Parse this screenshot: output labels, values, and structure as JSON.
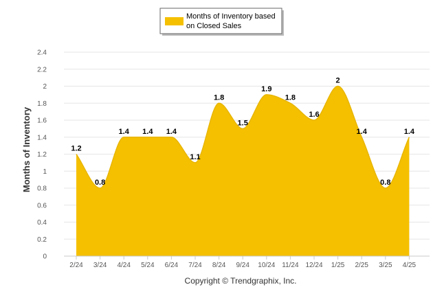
{
  "colors": {
    "area_fill": "#F5C000",
    "area_stroke": "#E8B500",
    "grid": "#E6E6E6",
    "axis": "#C8C8C8",
    "legend_border": "#666666"
  },
  "credit": "Copyright © Trendgraphix, Inc.",
  "chart_data": {
    "type": "area",
    "title": "",
    "xlabel": "",
    "ylabel": "Months of Inventory",
    "ylim": [
      0,
      2.4
    ],
    "yticks": [
      "0",
      "0.2",
      "0.4",
      "0.6",
      "0.8",
      "1",
      "1.2",
      "1.4",
      "1.6",
      "1.8",
      "2",
      "2.2",
      "2.4"
    ],
    "grid": true,
    "legend_position": "top-center",
    "categories": [
      "2/24",
      "3/24",
      "4/24",
      "5/24",
      "6/24",
      "7/24",
      "8/24",
      "9/24",
      "10/24",
      "11/24",
      "12/24",
      "1/25",
      "2/25",
      "3/25",
      "4/25"
    ],
    "series": [
      {
        "name": "Months of Inventory based on Closed Sales",
        "legend_lines": [
          "Months of Inventory based",
          "on Closed Sales"
        ],
        "values": [
          1.2,
          0.8,
          1.4,
          1.4,
          1.4,
          1.1,
          1.8,
          1.5,
          1.9,
          1.8,
          1.6,
          2,
          1.4,
          0.8,
          1.4
        ],
        "labels": [
          "1.2",
          "0.8",
          "1.4",
          "1.4",
          "1.4",
          "1.1",
          "1.8",
          "1.5",
          "1.9",
          "1.8",
          "1.6",
          "2",
          "1.4",
          "0.8",
          "1.4"
        ]
      }
    ]
  }
}
